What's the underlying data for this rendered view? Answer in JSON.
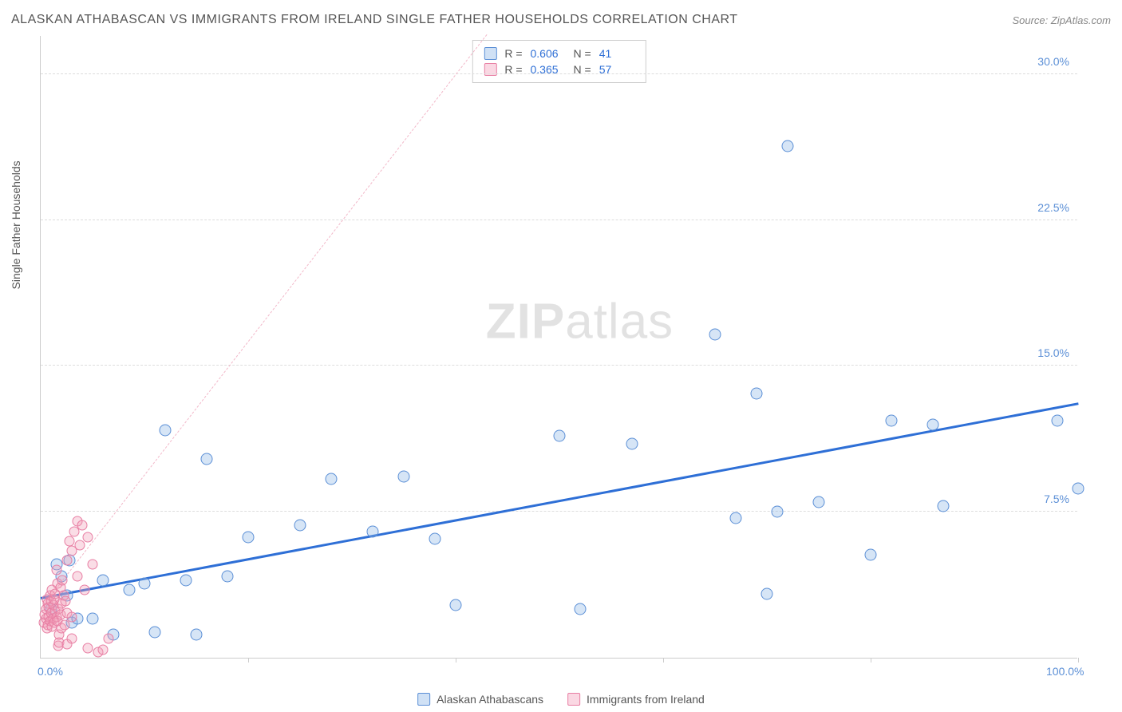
{
  "title": "ALASKAN ATHABASCAN VS IMMIGRANTS FROM IRELAND SINGLE FATHER HOUSEHOLDS CORRELATION CHART",
  "source": "Source: ZipAtlas.com",
  "ylabel": "Single Father Households",
  "watermark_a": "ZIP",
  "watermark_b": "atlas",
  "chart": {
    "type": "scatter",
    "background_color": "#ffffff",
    "grid_color": "#dddddd",
    "axis_color": "#cccccc",
    "xlim": [
      0,
      100
    ],
    "ylim": [
      0,
      32
    ],
    "xtick_labels": {
      "0": "0.0%",
      "100": "100.0%"
    },
    "xtick_marks": [
      20,
      40,
      60,
      80,
      100
    ],
    "yticks": [
      7.5,
      15.0,
      22.5,
      30.0
    ],
    "ytick_labels": [
      "7.5%",
      "15.0%",
      "22.5%",
      "30.0%"
    ],
    "series": [
      {
        "name": "Alaskan Athabascans",
        "color_fill": "#89b4e6",
        "color_border": "#5b8fd6",
        "marker_size": 15,
        "marker_opacity": 0.35,
        "r": "0.606",
        "n": "41",
        "trend": {
          "x1": 0,
          "y1": 3.0,
          "x2": 100,
          "y2": 13.0,
          "color": "#2e6fd6",
          "width": 2.5,
          "dashed": false
        },
        "points": [
          [
            1,
            2.5
          ],
          [
            1.5,
            4.8
          ],
          [
            2,
            4.2
          ],
          [
            2.5,
            3.2
          ],
          [
            2.8,
            5.0
          ],
          [
            3,
            1.8
          ],
          [
            3.5,
            2.0
          ],
          [
            5,
            2.0
          ],
          [
            6,
            4.0
          ],
          [
            7,
            1.2
          ],
          [
            8.5,
            3.5
          ],
          [
            10,
            3.8
          ],
          [
            11,
            1.3
          ],
          [
            12,
            11.7
          ],
          [
            14,
            4.0
          ],
          [
            15,
            1.2
          ],
          [
            16,
            10.2
          ],
          [
            18,
            4.2
          ],
          [
            20,
            6.2
          ],
          [
            25,
            6.8
          ],
          [
            28,
            9.2
          ],
          [
            32,
            6.5
          ],
          [
            35,
            9.3
          ],
          [
            38,
            6.1
          ],
          [
            40,
            2.7
          ],
          [
            50,
            11.4
          ],
          [
            52,
            2.5
          ],
          [
            57,
            11.0
          ],
          [
            65,
            16.6
          ],
          [
            67,
            7.2
          ],
          [
            69,
            13.6
          ],
          [
            70,
            3.3
          ],
          [
            71,
            7.5
          ],
          [
            72,
            26.3
          ],
          [
            75,
            8.0
          ],
          [
            80,
            5.3
          ],
          [
            82,
            12.2
          ],
          [
            86,
            12.0
          ],
          [
            87,
            7.8
          ],
          [
            98,
            12.2
          ],
          [
            100,
            8.7
          ]
        ]
      },
      {
        "name": "Immigrants from Ireland",
        "color_fill": "#f29db8",
        "color_border": "#e87ea3",
        "marker_size": 13,
        "marker_opacity": 0.35,
        "r": "0.365",
        "n": "57",
        "trend": {
          "x1": 0,
          "y1": 2.5,
          "x2": 43,
          "y2": 32.0,
          "color": "#f2b8c9",
          "width": 1.5,
          "dashed": true
        },
        "points": [
          [
            0.3,
            1.8
          ],
          [
            0.4,
            2.2
          ],
          [
            0.5,
            2.0
          ],
          [
            0.5,
            2.5
          ],
          [
            0.6,
            1.5
          ],
          [
            0.6,
            3.0
          ],
          [
            0.7,
            2.8
          ],
          [
            0.7,
            1.7
          ],
          [
            0.8,
            2.1
          ],
          [
            0.8,
            2.6
          ],
          [
            0.9,
            1.9
          ],
          [
            0.9,
            3.2
          ],
          [
            1.0,
            2.3
          ],
          [
            1.0,
            2.9
          ],
          [
            1.1,
            1.6
          ],
          [
            1.1,
            3.5
          ],
          [
            1.2,
            2.0
          ],
          [
            1.2,
            2.7
          ],
          [
            1.3,
            3.0
          ],
          [
            1.3,
            1.8
          ],
          [
            1.4,
            2.4
          ],
          [
            1.4,
            3.3
          ],
          [
            1.5,
            2.1
          ],
          [
            1.5,
            4.5
          ],
          [
            1.6,
            1.9
          ],
          [
            1.6,
            3.8
          ],
          [
            1.7,
            2.5
          ],
          [
            1.7,
            0.6
          ],
          [
            1.8,
            0.8
          ],
          [
            1.8,
            1.2
          ],
          [
            1.9,
            2.2
          ],
          [
            1.9,
            3.6
          ],
          [
            2.0,
            2.8
          ],
          [
            2.0,
            1.5
          ],
          [
            2.1,
            4.0
          ],
          [
            2.2,
            3.2
          ],
          [
            2.3,
            1.7
          ],
          [
            2.4,
            2.9
          ],
          [
            2.5,
            5.0
          ],
          [
            2.5,
            2.3
          ],
          [
            2.8,
            6.0
          ],
          [
            3.0,
            5.5
          ],
          [
            3.0,
            2.1
          ],
          [
            3.2,
            6.5
          ],
          [
            3.5,
            4.2
          ],
          [
            3.5,
            7.0
          ],
          [
            3.8,
            5.8
          ],
          [
            4.0,
            6.8
          ],
          [
            4.2,
            3.5
          ],
          [
            4.5,
            0.5
          ],
          [
            4.5,
            6.2
          ],
          [
            5.0,
            4.8
          ],
          [
            5.5,
            0.3
          ],
          [
            6.0,
            0.4
          ],
          [
            6.5,
            1.0
          ],
          [
            2.5,
            0.7
          ],
          [
            3.0,
            1.0
          ]
        ]
      }
    ]
  },
  "legend_top": {
    "r_label": "R =",
    "n_label": "N ="
  },
  "legend_bottom": [
    {
      "swatch": "blue",
      "label_path": "chart.series.0.name"
    },
    {
      "swatch": "pink",
      "label_path": "chart.series.1.name"
    }
  ]
}
